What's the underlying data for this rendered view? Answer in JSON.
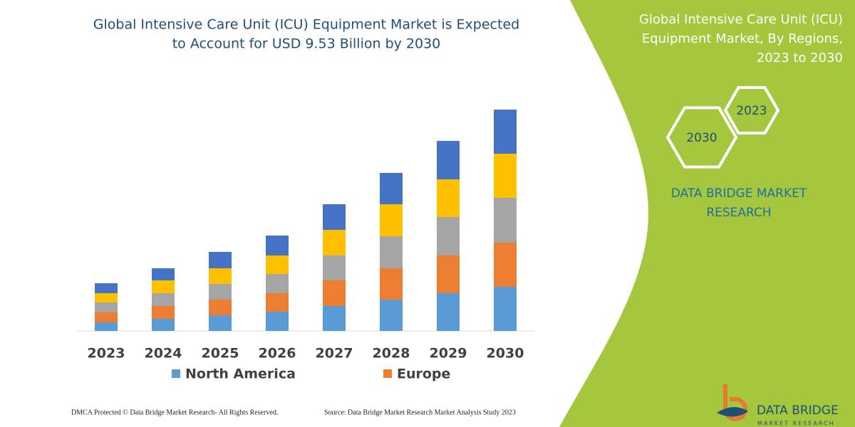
{
  "chart_data": {
    "type": "stacked-bar",
    "title": [
      "Global Intensive Care Unit (ICU) Equipment Market is Expected",
      "to Account for USD 9.53 Billion by 2030"
    ],
    "categories": [
      "2023",
      "2024",
      "2025",
      "2026",
      "2027",
      "2028",
      "2029",
      "2030"
    ],
    "series": [
      {
        "name": "North America",
        "color": "#5b9bd5",
        "values": [
          12,
          17,
          22,
          27,
          35,
          44,
          53,
          62
        ]
      },
      {
        "name": "Europe",
        "color": "#ed7d31",
        "values": [
          14,
          18,
          22,
          26,
          36,
          44,
          53,
          62
        ]
      },
      {
        "color": "#a5a5a5",
        "values": [
          14,
          18,
          22,
          27,
          35,
          45,
          54,
          63
        ]
      },
      {
        "color": "#ffc000",
        "values": [
          13,
          18,
          22,
          26,
          36,
          45,
          53,
          62
        ]
      },
      {
        "color": "#4472c4",
        "values": [
          14,
          17,
          23,
          28,
          36,
          44,
          54,
          62
        ]
      }
    ]
  },
  "panel": {
    "title": [
      "Global Intensive Care Unit (ICU)",
      "Equipment Market, By Regions,",
      "2023 to 2030"
    ],
    "hex_labels": [
      "2023",
      "2030"
    ],
    "brand": [
      "DATA BRIDGE MARKET",
      "RESEARCH"
    ]
  },
  "footer": {
    "left": "DMCA Protected © Data Bridge Market Research-  All Rights Reserved.",
    "right": "Source: Data Bridge Market Research  Market Analysis Study 2023"
  },
  "logo": {
    "name": "DATA BRIDGE",
    "tagline": "MARKET RESEARCH"
  }
}
